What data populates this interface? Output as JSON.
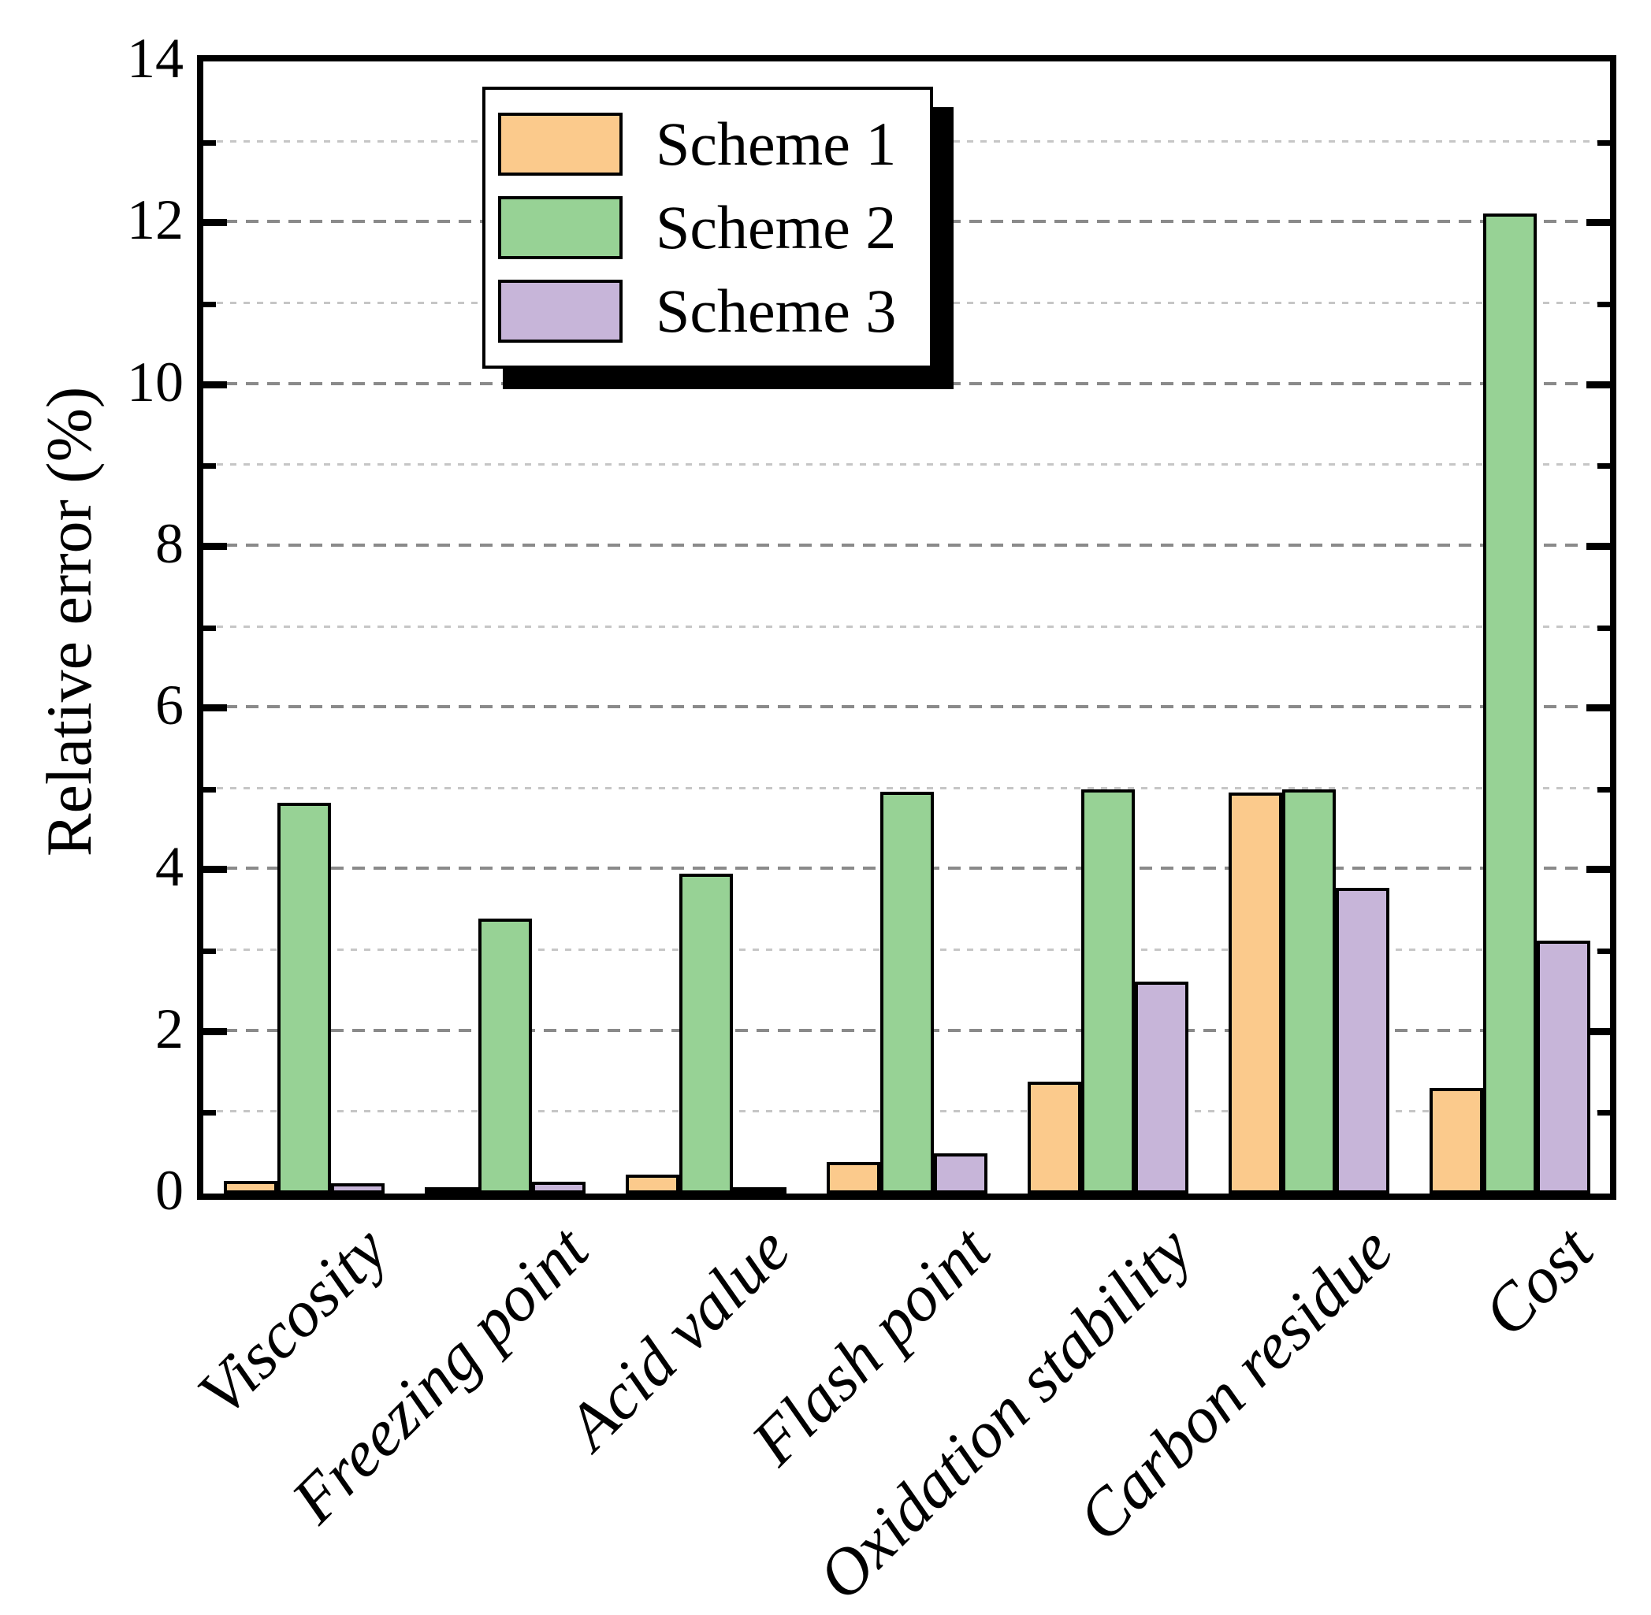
{
  "figure": {
    "background": "#ffffff"
  },
  "y_axis": {
    "title": "Relative error (%)",
    "min": 0,
    "max": 14,
    "major_tick_step": 2,
    "minor_tick_step": 1,
    "tick_labels": [
      "0",
      "2",
      "4",
      "6",
      "8",
      "10",
      "12",
      "14"
    ]
  },
  "legend": {
    "position": "upper-left-inside",
    "items": [
      {
        "label": "Scheme 1",
        "color": "#FBCA8C"
      },
      {
        "label": "Scheme 2",
        "color": "#97D295"
      },
      {
        "label": "Scheme 3",
        "color": "#C7B5D9"
      }
    ]
  },
  "chart_data": {
    "type": "bar",
    "title": "",
    "xlabel": "",
    "ylabel": "Relative error (%)",
    "ylim": [
      0,
      14
    ],
    "grid": "horizontal-dashed",
    "bar_edge_color": "#000000",
    "categories": [
      "Viscosity",
      "Freezing point",
      "Acid value",
      "Flash point",
      "Oxidation stability",
      "Carbon residue",
      "Cost"
    ],
    "series": [
      {
        "name": "Scheme 1",
        "color": "#FBCA8C",
        "values": [
          0.16,
          0.04,
          0.23,
          0.39,
          1.38,
          4.96,
          1.31
        ]
      },
      {
        "name": "Scheme 2",
        "color": "#97D295",
        "values": [
          4.83,
          3.4,
          3.96,
          4.97,
          5.0,
          5.0,
          12.12
        ]
      },
      {
        "name": "Scheme 3",
        "color": "#C7B5D9",
        "values": [
          0.13,
          0.15,
          0.05,
          0.5,
          2.62,
          3.78,
          3.13
        ]
      }
    ]
  }
}
